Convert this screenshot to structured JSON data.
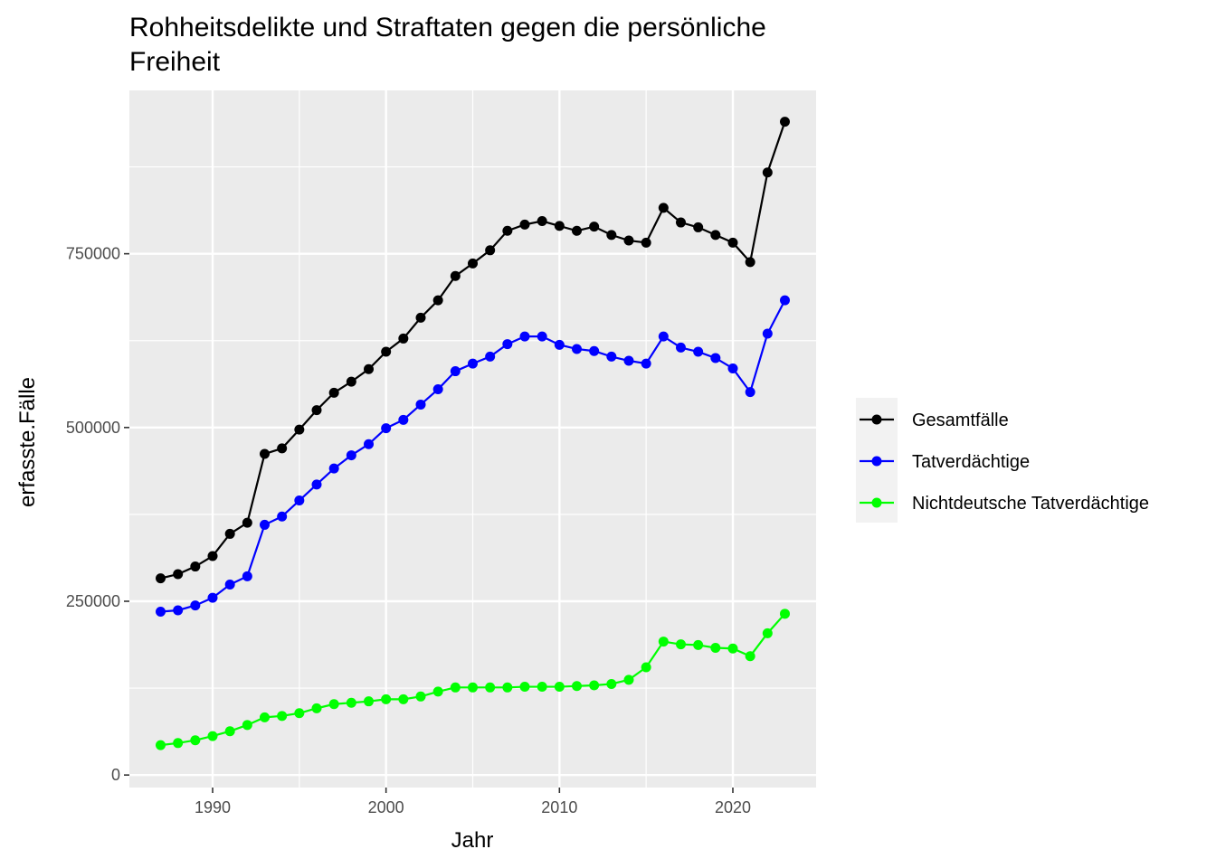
{
  "chart_data": {
    "type": "line",
    "title_line1": "Rohheitsdelikte und Straftaten gegen die persönliche",
    "title_line2": "Freiheit",
    "xlabel": "Jahr",
    "ylabel": "erfasste.Fälle",
    "xlim": [
      1985.2,
      2024.8
    ],
    "ylim": [
      -18000,
      985000
    ],
    "x_ticks": [
      1990,
      2000,
      2010,
      2020
    ],
    "y_ticks": [
      0,
      250000,
      500000,
      750000
    ],
    "y_minor_ticks": [
      125000,
      375000,
      625000,
      875000
    ],
    "x_minor_ticks": [
      1985,
      1995,
      2005,
      2015
    ],
    "x_tick_labels": [
      "1990",
      "2000",
      "2010",
      "2020"
    ],
    "y_tick_labels": [
      "0",
      "250000",
      "500000",
      "750000"
    ],
    "grid": true,
    "legend_position": "right",
    "x": [
      1987,
      1988,
      1989,
      1990,
      1991,
      1992,
      1993,
      1994,
      1995,
      1996,
      1997,
      1998,
      1999,
      2000,
      2001,
      2002,
      2003,
      2004,
      2005,
      2006,
      2007,
      2008,
      2009,
      2010,
      2011,
      2012,
      2013,
      2014,
      2015,
      2016,
      2017,
      2018,
      2019,
      2020,
      2021,
      2022,
      2023
    ],
    "series": [
      {
        "name": "Gesamtfälle",
        "color": "#000000",
        "values": [
          283000,
          289000,
          300000,
          315000,
          347000,
          363000,
          462000,
          470000,
          497000,
          525000,
          550000,
          566000,
          584000,
          609000,
          628000,
          658000,
          683000,
          718000,
          736000,
          755000,
          783000,
          792000,
          797000,
          790000,
          783000,
          789000,
          777000,
          769000,
          766000,
          816000,
          795000,
          788000,
          777000,
          766000,
          738000,
          867000,
          940000
        ]
      },
      {
        "name": "Tatverdächtige",
        "color": "#0000ff",
        "values": [
          235000,
          237000,
          244000,
          255000,
          274000,
          286000,
          360000,
          372000,
          395000,
          418000,
          441000,
          460000,
          476000,
          499000,
          511000,
          533000,
          555000,
          581000,
          592000,
          602000,
          620000,
          631000,
          631000,
          619000,
          613000,
          610000,
          602000,
          596000,
          592000,
          631000,
          615000,
          609000,
          600000,
          585000,
          551000,
          635000,
          683000
        ]
      },
      {
        "name": "Nichtdeutsche Tatverdächtige",
        "color": "#00ff00",
        "values": [
          43000,
          46000,
          50000,
          56000,
          63000,
          72000,
          83000,
          85000,
          89000,
          96000,
          102000,
          104000,
          106000,
          109000,
          109000,
          113000,
          120000,
          126000,
          126000,
          126000,
          126000,
          127000,
          127000,
          127000,
          128000,
          129000,
          131000,
          137000,
          155000,
          192000,
          188000,
          187000,
          183000,
          182000,
          171000,
          204000,
          232000
        ]
      }
    ]
  }
}
